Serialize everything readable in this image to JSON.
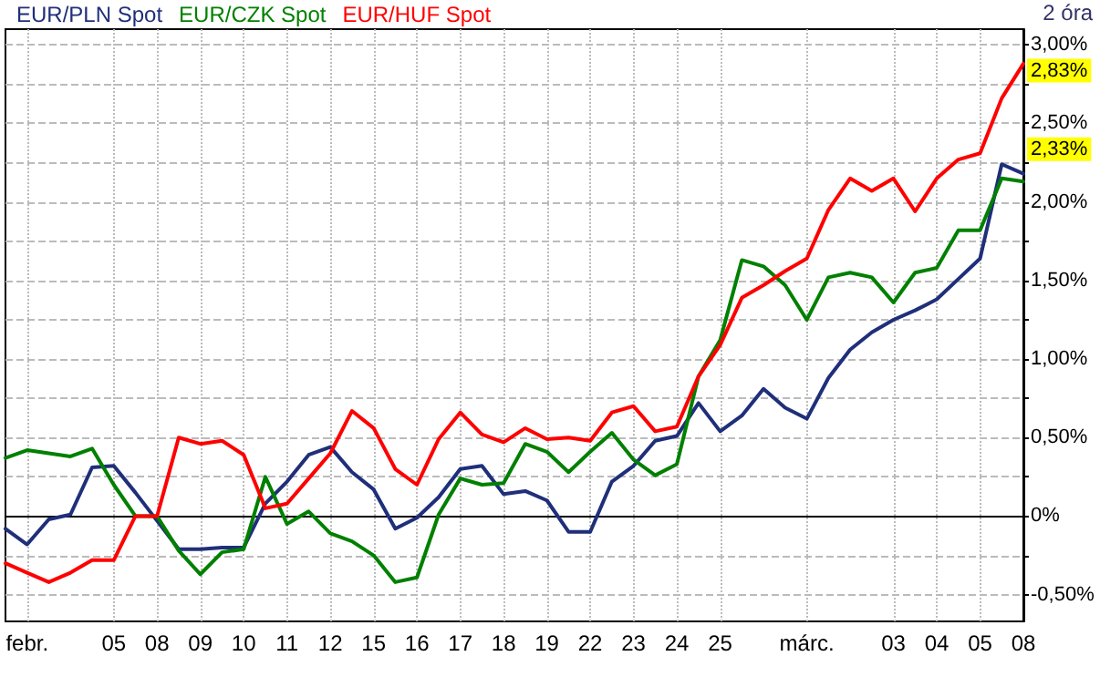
{
  "chart_data": {
    "type": "line",
    "legend": "top left",
    "grid": true,
    "line_style": "solid",
    "marker": "none",
    "annotations": [
      "2 óra",
      {
        "text": "2,83%",
        "y": 2.83
      },
      {
        "text": "2,33%",
        "y": 2.33
      }
    ],
    "categories": [
      null,
      "febr.",
      null,
      null,
      null,
      "05",
      null,
      "08",
      null,
      "09",
      null,
      "10",
      null,
      "11",
      null,
      "12",
      null,
      "15",
      null,
      "16",
      null,
      "17",
      null,
      "18",
      null,
      "19",
      null,
      "22",
      null,
      "23",
      null,
      "24",
      null,
      "25",
      null,
      null,
      null,
      "márc.",
      null,
      null,
      null,
      "03",
      null,
      "04",
      null,
      "05",
      null,
      "08"
    ],
    "ylim": [
      -0.67,
      3.1
    ],
    "yticks": [
      {
        "value": -0.5,
        "label": "-0,50%"
      },
      {
        "value": -0.25,
        "label": null
      },
      {
        "value": 0,
        "label": "0%"
      },
      {
        "value": 0.25,
        "label": null
      },
      {
        "value": 0.5,
        "label": "0,50%"
      },
      {
        "value": 0.75,
        "label": null
      },
      {
        "value": 1,
        "label": "1,00%"
      },
      {
        "value": 1.25,
        "label": null
      },
      {
        "value": 1.5,
        "label": "1,50%"
      },
      {
        "value": 1.75,
        "label": null
      },
      {
        "value": 2,
        "label": "2,00%"
      },
      {
        "value": 2.25,
        "label": null
      },
      {
        "value": 2.5,
        "label": "2,50%"
      },
      {
        "value": 2.75,
        "label": null
      },
      {
        "value": 3,
        "label": "3,00%"
      }
    ],
    "series": [
      {
        "name": "EUR/PLN Spot",
        "color": "#1f2f7a",
        "values": [
          -0.08,
          -0.18,
          -0.02,
          0.01,
          0.31,
          0.32,
          0.15,
          -0.03,
          -0.21,
          -0.21,
          -0.2,
          -0.2,
          0.08,
          0.22,
          0.39,
          0.44,
          0.28,
          0.17,
          -0.08,
          -0.01,
          0.12,
          0.3,
          0.32,
          0.14,
          0.16,
          0.1,
          -0.1,
          -0.1,
          0.22,
          0.32,
          0.48,
          0.51,
          0.72,
          0.54,
          0.64,
          0.81,
          0.69,
          0.62,
          0.88,
          1.06,
          1.17,
          1.25,
          1.31,
          1.38,
          1.51,
          1.64,
          2.24,
          2.18
        ]
      },
      {
        "name": "EUR/CZK Spot",
        "color": "#008000",
        "values": [
          0.37,
          0.42,
          0.4,
          0.38,
          0.43,
          0.2,
          0,
          0,
          -0.22,
          -0.37,
          -0.23,
          -0.21,
          0.25,
          -0.05,
          0.03,
          -0.11,
          -0.16,
          -0.25,
          -0.42,
          -0.39,
          0.01,
          0.24,
          0.2,
          0.21,
          0.46,
          0.41,
          0.28,
          0.41,
          0.53,
          0.36,
          0.26,
          0.33,
          0.89,
          1.12,
          1.63,
          1.59,
          1.47,
          1.25,
          1.52,
          1.55,
          1.52,
          1.36,
          1.55,
          1.58,
          1.82,
          1.82,
          2.15,
          2.13
        ]
      },
      {
        "name": "EUR/HUF Spot",
        "color": "#ff0000",
        "values": [
          -0.3,
          -0.36,
          -0.42,
          -0.36,
          -0.28,
          -0.28,
          0,
          0,
          0.5,
          0.46,
          0.48,
          0.39,
          0.05,
          0.08,
          0.24,
          0.4,
          0.67,
          0.56,
          0.3,
          0.2,
          0.49,
          0.66,
          0.52,
          0.47,
          0.56,
          0.49,
          0.5,
          0.48,
          0.66,
          0.7,
          0.54,
          0.57,
          0.89,
          1.09,
          1.39,
          1.47,
          1.56,
          1.64,
          1.95,
          2.15,
          2.07,
          2.15,
          1.94,
          2.15,
          2.27,
          2.31,
          2.66,
          2.88
        ]
      }
    ]
  }
}
